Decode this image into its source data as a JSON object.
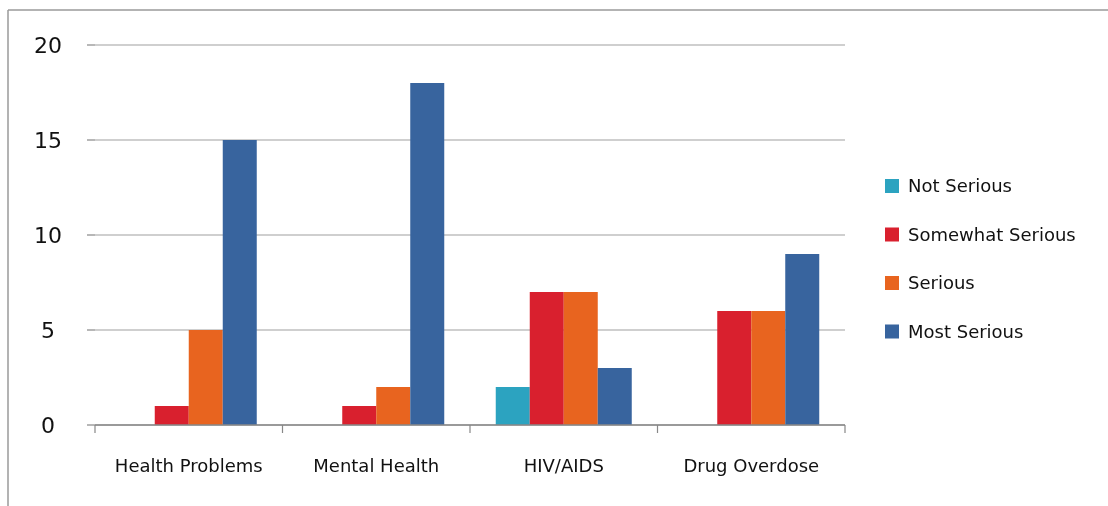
{
  "chart_data": {
    "type": "bar",
    "categories": [
      "Health Problems",
      "Mental Health",
      "HIV/AIDS",
      "Drug Overdose"
    ],
    "series": [
      {
        "name": "Not Serious",
        "color": "#2ca3c0",
        "values": [
          0,
          0,
          2,
          0
        ]
      },
      {
        "name": "Somewhat Serious",
        "color": "#d9202e",
        "values": [
          1,
          1,
          7,
          6
        ]
      },
      {
        "name": "Serious",
        "color": "#e8641f",
        "values": [
          5,
          2,
          7,
          6
        ]
      },
      {
        "name": "Most Serious",
        "color": "#38649e",
        "values": [
          15,
          18,
          3,
          9
        ]
      }
    ],
    "ylim": [
      0,
      20
    ],
    "yticks": [
      0,
      5,
      10,
      15,
      20
    ],
    "grid": "y",
    "legend": "right"
  }
}
